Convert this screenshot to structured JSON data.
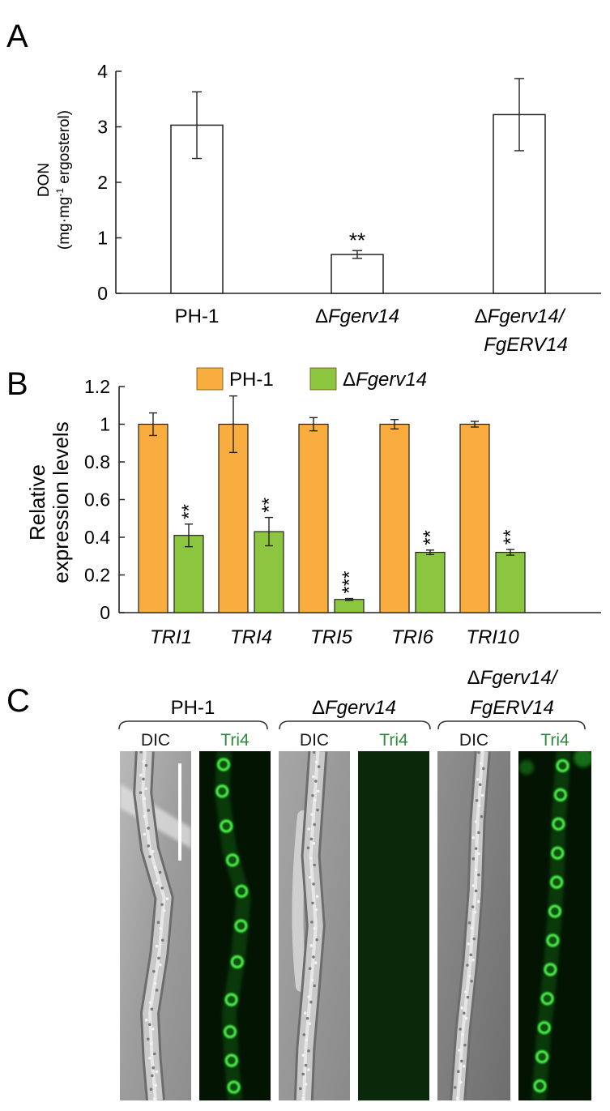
{
  "panels": {
    "a": {
      "letter": "A"
    },
    "b": {
      "letter": "B"
    },
    "c": {
      "letter": "C"
    }
  },
  "chart_data": [
    {
      "type": "bar",
      "panel": "A",
      "title": "",
      "ylabel": [
        "DON",
        "(mg·mg",
        "-1",
        " ergosterol)"
      ],
      "xlabel": "",
      "categories": [
        {
          "prefix": "",
          "name": "PH-1",
          "italic": false
        },
        {
          "prefix": "Δ",
          "name": "Fgerv14",
          "italic": true
        },
        {
          "prefix": "Δ",
          "name": "Fgerv14/",
          "line2": "FgERV14",
          "italic": true
        }
      ],
      "values": [
        3.03,
        0.7,
        3.22
      ],
      "errors": [
        0.6,
        0.07,
        0.65
      ],
      "significance": [
        "",
        "**",
        ""
      ],
      "ylim": [
        0,
        4
      ],
      "yticks": [
        "0",
        "1",
        "2",
        "3",
        "4"
      ],
      "bar_color": "#ffffff",
      "grid": false
    },
    {
      "type": "bar",
      "panel": "B",
      "title": "",
      "ylabel": [
        "Relative",
        "expression levels"
      ],
      "xlabel": "",
      "categories": [
        "TRI1",
        "TRI4",
        "TRI5",
        "TRI6",
        "TRI10"
      ],
      "series": [
        {
          "name": "PH-1",
          "prefix": "",
          "italic": false,
          "color": "#f9ad3e",
          "values": [
            1.0,
            1.0,
            1.0,
            1.0,
            1.0
          ],
          "errors": [
            0.06,
            0.15,
            0.035,
            0.025,
            0.015
          ],
          "significance": [
            "",
            "",
            "",
            "",
            ""
          ]
        },
        {
          "name": "Fgerv14",
          "prefix": "Δ",
          "italic": true,
          "color": "#8cc63f",
          "values": [
            0.41,
            0.43,
            0.07,
            0.32,
            0.32
          ],
          "errors": [
            0.06,
            0.075,
            0.005,
            0.012,
            0.015
          ],
          "significance": [
            "**",
            "**",
            "***",
            "**",
            "**"
          ]
        }
      ],
      "ylim": [
        0,
        1.2
      ],
      "yticks": [
        "0",
        "0.2",
        "0.4",
        "0.6",
        "0.8",
        "1",
        "1.2"
      ],
      "legend": "top",
      "grid": false
    }
  ],
  "micrographs": {
    "groups": [
      {
        "prefix": "",
        "label": "PH-1",
        "line2": "",
        "italic": false
      },
      {
        "prefix": "Δ",
        "label": "Fgerv14",
        "line2": "",
        "italic": true
      },
      {
        "prefix": "Δ",
        "label": "Fgerv14/",
        "line2": "FgERV14",
        "italic": true
      }
    ],
    "channel_labels": [
      "DIC",
      "Tri4",
      "DIC",
      "Tri4",
      "DIC",
      "Tri4"
    ],
    "channel_colors": [
      "#1a1a1a",
      "#2e8b3e"
    ],
    "scale_bar": true
  }
}
